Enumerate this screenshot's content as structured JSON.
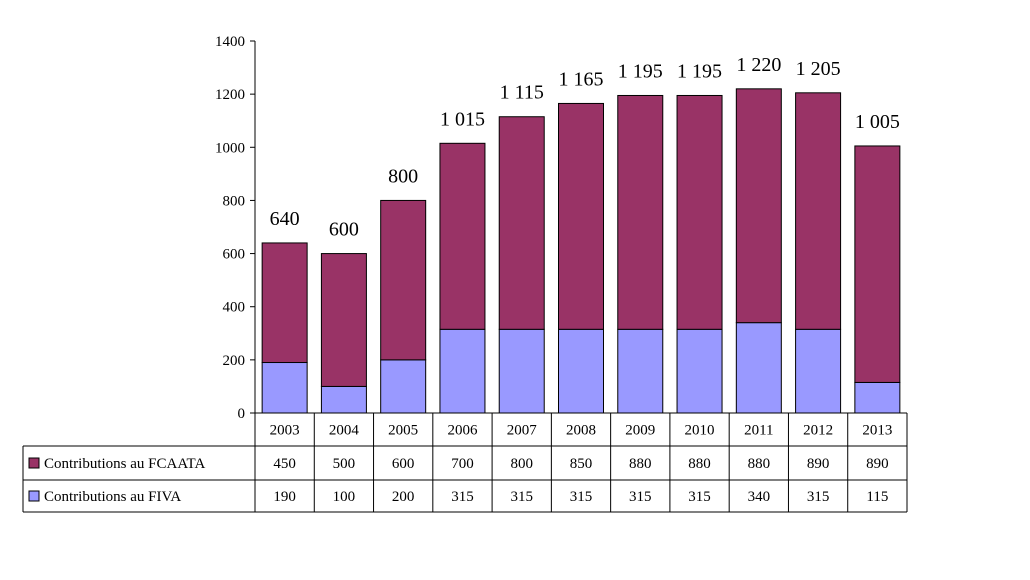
{
  "chart_data": {
    "type": "bar",
    "stacked": true,
    "title": "",
    "xlabel": "",
    "ylabel": "",
    "ylim": [
      0,
      1400
    ],
    "yticks": [
      0,
      200,
      400,
      600,
      800,
      1000,
      1200,
      1400
    ],
    "grid": false,
    "legend": "data-table-left",
    "categories": [
      "2003",
      "2004",
      "2005",
      "2006",
      "2007",
      "2008",
      "2009",
      "2010",
      "2011",
      "2012",
      "2013"
    ],
    "series": [
      {
        "name": "Contributions au FIVA",
        "color": "#9999ff",
        "values": [
          190,
          100,
          200,
          315,
          315,
          315,
          315,
          315,
          340,
          315,
          115
        ]
      },
      {
        "name": "Contributions au FCAATA",
        "color": "#993366",
        "values": [
          450,
          500,
          600,
          700,
          800,
          850,
          880,
          880,
          880,
          890,
          890
        ]
      }
    ],
    "totals": [
      640,
      600,
      800,
      1015,
      1115,
      1165,
      1195,
      1195,
      1220,
      1205,
      1005
    ],
    "total_labels": [
      "640",
      "600",
      "800",
      "1 015",
      "1 115",
      "1 165",
      "1 195",
      "1 195",
      "1 220",
      "1 205",
      "1 005"
    ],
    "table_rows": [
      {
        "label": "Contributions au FCAATA",
        "series_index": 1,
        "values": [
          "450",
          "500",
          "600",
          "700",
          "800",
          "850",
          "880",
          "880",
          "880",
          "890",
          "890"
        ]
      },
      {
        "label": "Contributions au FIVA",
        "series_index": 0,
        "values": [
          "190",
          "100",
          "200",
          "315",
          "315",
          "315",
          "315",
          "315",
          "340",
          "315",
          "115"
        ]
      }
    ]
  }
}
